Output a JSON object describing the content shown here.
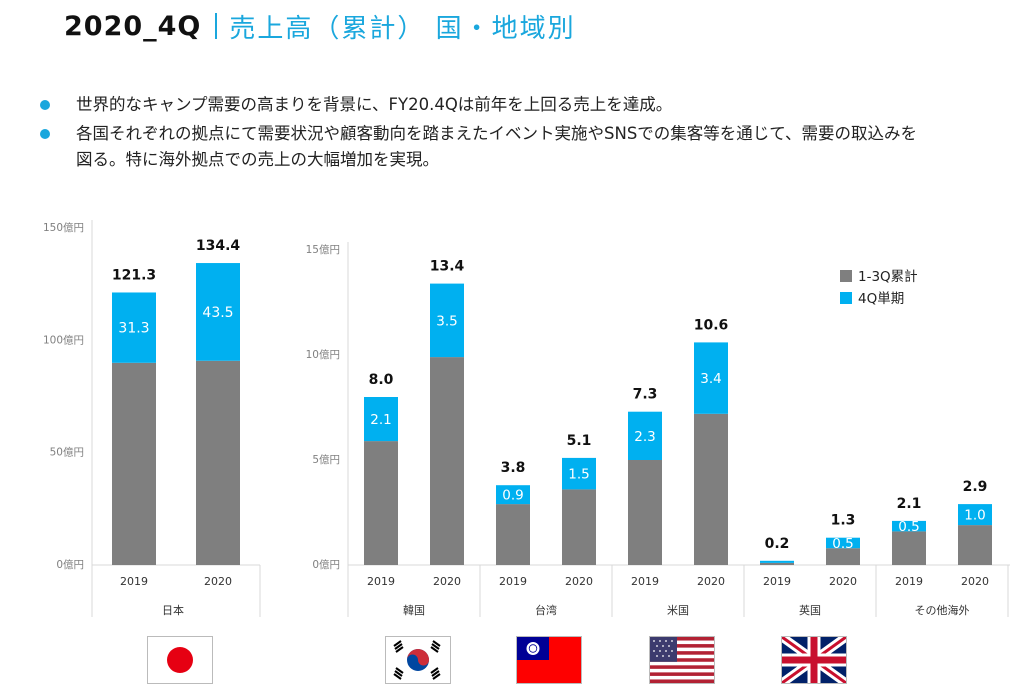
{
  "header": {
    "title": "2020_4Q",
    "subtitle": "売上高（累計） 国・地域別"
  },
  "bullets": [
    {
      "lines": [
        "世界的なキャンプ需要の高まりを背景に、FY20.4Qは前年を上回る売上を達成。"
      ]
    },
    {
      "lines": [
        "各国それぞれの拠点にて需要状況や顧客動向を踏まえたイベント実施やSNSでの集客等を通じて、需要の取込みを",
        "図る。特に海外拠点での売上の大幅増加を実現。"
      ]
    }
  ],
  "colors": {
    "gray": "#7f7f7f",
    "blue": "#00b0f0",
    "accent": "#1aa7dd"
  },
  "chart_data": [
    {
      "type": "bar",
      "stacked": true,
      "title": "日本",
      "categories": [
        "2019",
        "2020"
      ],
      "series": [
        {
          "name": "1-3Q累計",
          "values": [
            90.0,
            90.9
          ]
        },
        {
          "name": "4Q単期",
          "values": [
            31.3,
            43.5
          ]
        }
      ],
      "totals": [
        "121.3",
        "134.4"
      ],
      "segment_labels": [
        "31.3",
        "43.5"
      ],
      "yticks": [
        0,
        50,
        100,
        150
      ],
      "ytick_labels": [
        "0億円",
        "50億円",
        "100億円",
        "150億円"
      ],
      "ylim": [
        0,
        150
      ]
    },
    {
      "type": "bar",
      "stacked": true,
      "groups": [
        "韓国",
        "台湾",
        "米国",
        "英国",
        "その他海外"
      ],
      "categories": [
        "2019",
        "2020",
        "2019",
        "2020",
        "2019",
        "2020",
        "2019",
        "2020",
        "2019",
        "2020"
      ],
      "series": [
        {
          "name": "1-3Q累計",
          "values": [
            5.9,
            9.9,
            2.9,
            3.6,
            5.0,
            7.2,
            0.1,
            0.8,
            1.6,
            1.9
          ]
        },
        {
          "name": "4Q単期",
          "values": [
            2.1,
            3.5,
            0.9,
            1.5,
            2.3,
            3.4,
            0.1,
            0.5,
            0.5,
            1.0
          ]
        }
      ],
      "totals": [
        "8.0",
        "13.4",
        "3.8",
        "5.1",
        "7.3",
        "10.6",
        "0.2",
        "1.3",
        "2.1",
        "2.9"
      ],
      "segment_labels": [
        "2.1",
        "3.5",
        "0.9",
        "1.5",
        "2.3",
        "3.4",
        "",
        "0.5",
        "0.5",
        "1.0"
      ],
      "yticks": [
        0,
        5,
        10,
        15
      ],
      "ytick_labels": [
        "0億円",
        "5億円",
        "10億円",
        "15億円"
      ],
      "ylim": [
        0,
        15
      ],
      "legend": {
        "placement": "top-right",
        "entries": [
          "1-3Q累計",
          "4Q単期"
        ]
      }
    }
  ],
  "flags": [
    {
      "name": "japan-flag"
    },
    {
      "name": "korea-flag"
    },
    {
      "name": "taiwan-flag"
    },
    {
      "name": "usa-flag"
    },
    {
      "name": "uk-flag"
    }
  ]
}
